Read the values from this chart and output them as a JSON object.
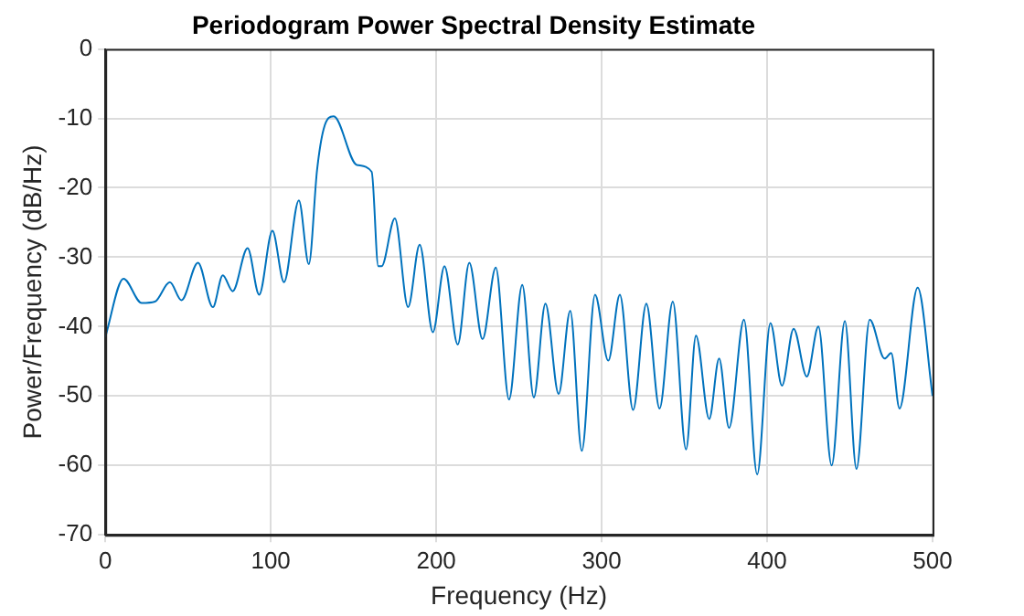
{
  "chart_data": {
    "type": "line",
    "title": "Periodogram Power Spectral Density Estimate",
    "xlabel": "Frequency (Hz)",
    "ylabel": "Power/Frequency (dB/Hz)",
    "x": [
      0,
      11,
      22,
      30,
      39,
      46,
      56,
      65,
      71,
      77,
      86,
      93,
      101,
      108,
      117,
      123,
      128,
      132,
      138,
      152,
      161,
      165,
      167,
      175,
      183,
      190,
      198,
      205,
      213,
      220,
      228,
      236,
      244,
      252,
      259,
      266,
      274,
      281,
      288,
      296,
      304,
      311,
      319,
      327,
      335,
      343,
      351,
      357,
      365,
      371,
      377,
      386,
      394,
      402,
      409,
      416,
      424,
      431,
      439,
      447,
      454,
      462,
      471,
      475,
      480,
      491,
      500
    ],
    "series": [
      {
        "color": "#0072bd",
        "values": [
          -41.5,
          -33.1,
          -36.6,
          -36.4,
          -33.6,
          -36.2,
          -30.8,
          -37.2,
          -32.6,
          -34.9,
          -28.7,
          -35.4,
          -26.2,
          -33.6,
          -21.8,
          -31,
          -17.4,
          -11.5,
          -9.7,
          -16.7,
          -17.7,
          -31.3,
          -31.3,
          -24.4,
          -37.2,
          -28.2,
          -40.8,
          -31.3,
          -42.6,
          -30.8,
          -41.8,
          -31.5,
          -50.5,
          -34,
          -50.2,
          -36.7,
          -49.7,
          -37.7,
          -57.9,
          -35.4,
          -44.9,
          -35.4,
          -52,
          -36.7,
          -51.8,
          -36.4,
          -57.7,
          -41.3,
          -53.3,
          -44.6,
          -54.6,
          -39,
          -61.3,
          -39.5,
          -48.5,
          -40.3,
          -47.2,
          -40,
          -60,
          -39.2,
          -60.5,
          -39,
          -44.6,
          -43.8,
          -51.8,
          -34.4,
          -50
        ]
      }
    ],
    "xlim": [
      0,
      500
    ],
    "xticks": [
      0,
      100,
      200,
      300,
      400,
      500
    ],
    "ylim": [
      -70,
      0
    ],
    "yticks": [
      -70,
      -60,
      -50,
      -40,
      -30,
      -20,
      -10,
      0
    ],
    "grid": true,
    "legend": false,
    "marker": "none",
    "line_style": "solid"
  }
}
